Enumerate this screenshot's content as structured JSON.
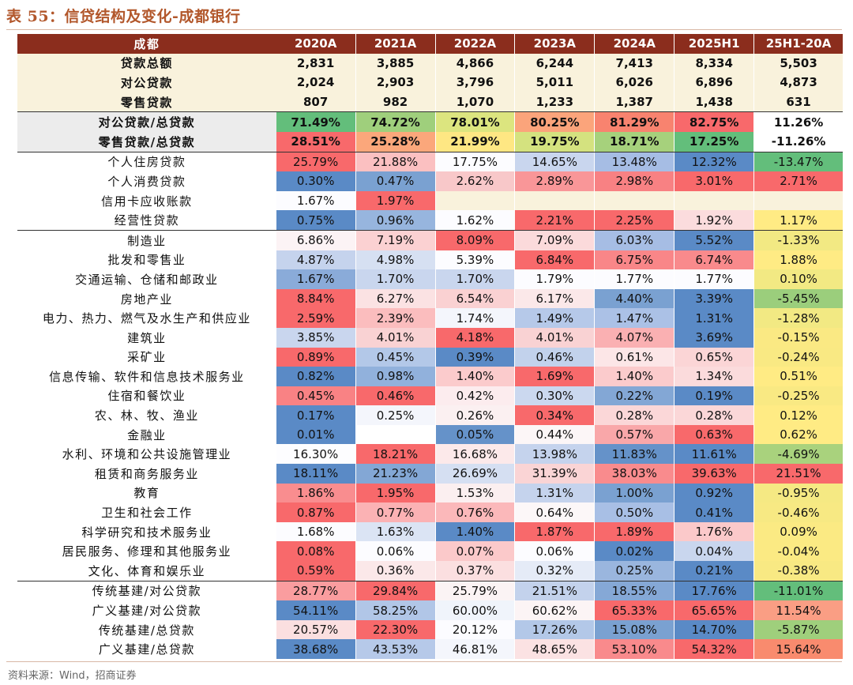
{
  "title": "表 55：信贷结构及变化-成都银行",
  "source": "资料来源：Wind，招商证券",
  "header": [
    "成都",
    "2020A",
    "2021A",
    "2022A",
    "2023A",
    "2024A",
    "2025H1",
    "25H1-20A"
  ],
  "rows": [
    {
      "label": "贷款总额",
      "vals": [
        "2,831",
        "3,885",
        "4,866",
        "6,244",
        "7,413",
        "8,334",
        "5,503"
      ],
      "style": "summary",
      "colors": []
    },
    {
      "label": "对公贷款",
      "vals": [
        "2,024",
        "2,903",
        "3,796",
        "5,011",
        "6,026",
        "6,896",
        "4,873"
      ],
      "style": "summary",
      "colors": []
    },
    {
      "label": "零售贷款",
      "vals": [
        "807",
        "982",
        "1,070",
        "1,233",
        "1,387",
        "1,438",
        "631"
      ],
      "style": "summary",
      "colors": []
    },
    {
      "label": "对公贷款/总贷款",
      "vals": [
        "71.49%",
        "74.72%",
        "78.01%",
        "80.25%",
        "81.29%",
        "82.75%",
        "11.26%"
      ],
      "style": "ratio sep",
      "colors": [
        "#63be7b",
        "#9fcf7c",
        "#dce57f",
        "#fba47b",
        "#f8836f",
        "#f8696b",
        "#ffffff"
      ]
    },
    {
      "label": "零售贷款/总贷款",
      "vals": [
        "28.51%",
        "25.28%",
        "21.99%",
        "19.75%",
        "18.71%",
        "17.25%",
        "-11.26%"
      ],
      "style": "ratio",
      "colors": [
        "#f8696b",
        "#fba77b",
        "#fee783",
        "#d4e27f",
        "#a6d17c",
        "#63be7b",
        "#ffffff"
      ]
    },
    {
      "label": "个人住房贷款",
      "vals": [
        "25.79%",
        "21.88%",
        "17.75%",
        "14.65%",
        "13.48%",
        "12.32%",
        "-13.47%"
      ],
      "style": "sep",
      "colors": [
        "#f8696b",
        "#fbc0c1",
        "#fcfcff",
        "#c9d6ee",
        "#a6bde4",
        "#5a8ac6",
        "#63be7b"
      ]
    },
    {
      "label": "个人消费贷款",
      "vals": [
        "0.30%",
        "0.47%",
        "2.62%",
        "2.89%",
        "2.98%",
        "3.01%",
        "2.71%"
      ],
      "style": "",
      "colors": [
        "#5a8ac6",
        "#7aa1d1",
        "#f8c8c9",
        "#f99698",
        "#f88183",
        "#f8696b",
        "#f8696b"
      ]
    },
    {
      "label": "信用卡应收账款",
      "vals": [
        "1.67%",
        "1.97%",
        "",
        "",
        "",
        "",
        ""
      ],
      "style": "",
      "colors": [
        "#fcfcff",
        "#f8696b",
        "#f9f2dc",
        "#f9f2dc",
        "#f9f2dc",
        "#f9f2dc",
        "#f9f2dc"
      ]
    },
    {
      "label": "经营性贷款",
      "vals": [
        "0.75%",
        "0.96%",
        "1.62%",
        "2.21%",
        "2.25%",
        "1.92%",
        "1.17%"
      ],
      "style": "",
      "colors": [
        "#5a8ac6",
        "#97b5de",
        "#fcfcff",
        "#f8696b",
        "#f8696b",
        "#fbdcdd",
        "#ffeb84"
      ]
    },
    {
      "label": "制造业",
      "vals": [
        "6.86%",
        "7.19%",
        "8.09%",
        "7.09%",
        "6.03%",
        "5.52%",
        "-1.33%"
      ],
      "style": "sep",
      "colors": [
        "#fcf3f5",
        "#fbd1d2",
        "#f8696b",
        "#fbdadb",
        "#a6bde4",
        "#5a8ac6",
        "#f2e983"
      ]
    },
    {
      "label": "批发和零售业",
      "vals": [
        "4.87%",
        "4.98%",
        "5.39%",
        "6.84%",
        "6.75%",
        "6.74%",
        "1.88%"
      ],
      "style": "",
      "colors": [
        "#c5d3ed",
        "#d6e0f2",
        "#fcfcff",
        "#f8696b",
        "#f98688",
        "#f98a8c",
        "#ffeb84"
      ]
    },
    {
      "label": "交通运输、仓储和邮政业",
      "vals": [
        "1.67%",
        "1.70%",
        "1.70%",
        "1.79%",
        "1.77%",
        "1.77%",
        "0.10%"
      ],
      "style": "",
      "colors": [
        "#8aabd9",
        "#c9d6ee",
        "#c9d6ee",
        "#fcfcff",
        "#fcfcff",
        "#fcfcff",
        "#f2e983"
      ]
    },
    {
      "label": "房地产业",
      "vals": [
        "8.84%",
        "6.27%",
        "6.54%",
        "6.17%",
        "4.40%",
        "3.39%",
        "-5.45%"
      ],
      "style": "",
      "colors": [
        "#f8696b",
        "#fbe2e3",
        "#fad1d2",
        "#fbe8e9",
        "#7aa1d1",
        "#5a8ac6",
        "#9bce7c"
      ]
    },
    {
      "label": "电力、热力、燃气及水生产和供应业",
      "vals": [
        "2.59%",
        "2.39%",
        "1.74%",
        "1.49%",
        "1.47%",
        "1.31%",
        "-1.28%"
      ],
      "style": "",
      "colors": [
        "#f8696b",
        "#fbbdbe",
        "#f4f6fc",
        "#b6c9e9",
        "#abc1e6",
        "#5a8ac6",
        "#f2e983"
      ]
    },
    {
      "label": "建筑业",
      "vals": [
        "3.85%",
        "4.01%",
        "4.18%",
        "4.01%",
        "4.07%",
        "3.69%",
        "-0.15%"
      ],
      "style": "",
      "colors": [
        "#c9d6ee",
        "#f9d2d3",
        "#f8696b",
        "#f9d2d3",
        "#fab0b2",
        "#5a8ac6",
        "#fae983"
      ]
    },
    {
      "label": "采矿业",
      "vals": [
        "0.89%",
        "0.45%",
        "0.39%",
        "0.46%",
        "0.61%",
        "0.65%",
        "-0.24%"
      ],
      "style": "",
      "colors": [
        "#f8696b",
        "#b3c8e8",
        "#5a8ac6",
        "#c2d2ec",
        "#fce6e7",
        "#fbd5d6",
        "#f9e983"
      ]
    },
    {
      "label": "信息传输、软件和信息技术服务业",
      "vals": [
        "0.82%",
        "0.98%",
        "1.40%",
        "1.69%",
        "1.40%",
        "1.34%",
        "0.51%"
      ],
      "style": "",
      "colors": [
        "#5a8ac6",
        "#91b1dc",
        "#fbcbcc",
        "#f8696b",
        "#fbcbcc",
        "#fbdbdc",
        "#ffeb84"
      ]
    },
    {
      "label": "住宿和餐饮业",
      "vals": [
        "0.45%",
        "0.46%",
        "0.42%",
        "0.30%",
        "0.22%",
        "0.19%",
        "-0.25%"
      ],
      "style": "",
      "colors": [
        "#f98284",
        "#f8696b",
        "#fcecee",
        "#cbd8ef",
        "#83a7d5",
        "#5a8ac6",
        "#f9e983"
      ]
    },
    {
      "label": "农、林、牧、渔业",
      "vals": [
        "0.17%",
        "0.25%",
        "0.26%",
        "0.34%",
        "0.28%",
        "0.28%",
        "0.12%"
      ],
      "style": "",
      "colors": [
        "#5a8ac6",
        "#f4f6fc",
        "#fbf0f1",
        "#f8696b",
        "#fbd7d8",
        "#fbd7d8",
        "#ffeb84"
      ]
    },
    {
      "label": "金融业",
      "vals": [
        "0.01%",
        "",
        "0.05%",
        "0.44%",
        "0.57%",
        "0.63%",
        "0.62%"
      ],
      "style": "",
      "colors": [
        "#5a8ac6",
        "#ffffff",
        "#6592c9",
        "#fcf6f7",
        "#f9a7a9",
        "#f8696b",
        "#ffeb84"
      ]
    },
    {
      "label": "水利、环境和公共设施管理业",
      "vals": [
        "16.30%",
        "18.21%",
        "16.68%",
        "13.98%",
        "11.83%",
        "11.61%",
        "-4.69%"
      ],
      "style": "",
      "colors": [
        "#fdfdff",
        "#f8696b",
        "#fce9ea",
        "#c5d3ed",
        "#6592c9",
        "#5a8ac6",
        "#a9d27d"
      ]
    },
    {
      "label": "租赁和商务服务业",
      "vals": [
        "18.11%",
        "21.23%",
        "26.69%",
        "31.39%",
        "38.03%",
        "39.63%",
        "21.51%"
      ],
      "style": "",
      "colors": [
        "#5a8ac6",
        "#83a7d5",
        "#d5dff2",
        "#fad4d5",
        "#f98b8d",
        "#f8696b",
        "#f8696b"
      ]
    },
    {
      "label": "教育",
      "vals": [
        "1.86%",
        "1.95%",
        "1.53%",
        "1.31%",
        "1.00%",
        "0.92%",
        "-0.95%"
      ],
      "style": "",
      "colors": [
        "#f98d8f",
        "#f8696b",
        "#fbeff0",
        "#c5d3ed",
        "#7aa1d1",
        "#5a8ac6",
        "#f5e983"
      ]
    },
    {
      "label": "卫生和社会工作",
      "vals": [
        "0.87%",
        "0.77%",
        "0.76%",
        "0.64%",
        "0.50%",
        "0.41%",
        "-0.46%"
      ],
      "style": "",
      "colors": [
        "#f8696b",
        "#fbb2b4",
        "#fbb8ba",
        "#fcf7f8",
        "#a8bfe5",
        "#5a8ac6",
        "#f7e983"
      ]
    },
    {
      "label": "科学研究和技术服务业",
      "vals": [
        "1.68%",
        "1.63%",
        "1.40%",
        "1.87%",
        "1.89%",
        "1.76%",
        "0.09%"
      ],
      "style": "",
      "colors": [
        "#fcfcff",
        "#dbe4f4",
        "#5a8ac6",
        "#f8696b",
        "#f8696b",
        "#fbc9ca",
        "#fbea83"
      ]
    },
    {
      "label": "居民服务、修理和其他服务业",
      "vals": [
        "0.08%",
        "0.06%",
        "0.07%",
        "0.06%",
        "0.02%",
        "0.04%",
        "-0.04%"
      ],
      "style": "",
      "colors": [
        "#f8696b",
        "#fcfcff",
        "#fbc9ca",
        "#fcfcff",
        "#5a8ac6",
        "#c9d6ee",
        "#fbea83"
      ]
    },
    {
      "label": "文化、体育和娱乐业",
      "vals": [
        "0.59%",
        "0.36%",
        "0.37%",
        "0.32%",
        "0.25%",
        "0.21%",
        "-0.38%"
      ],
      "style": "",
      "colors": [
        "#f8696b",
        "#fbe8e9",
        "#fbdfe0",
        "#e5ebf7",
        "#9ab6de",
        "#5a8ac6",
        "#f8e983"
      ]
    },
    {
      "label": "传统基建/对公贷款",
      "vals": [
        "28.77%",
        "29.84%",
        "25.79%",
        "21.51%",
        "18.55%",
        "17.76%",
        "-11.01%"
      ],
      "style": "sep",
      "colors": [
        "#fa9d9f",
        "#f8696b",
        "#fbf3f4",
        "#c3d2ec",
        "#85a8d6",
        "#5a8ac6",
        "#63be7b"
      ]
    },
    {
      "label": "广义基建/对公贷款",
      "vals": [
        "54.11%",
        "58.25%",
        "60.00%",
        "60.62%",
        "65.33%",
        "65.65%",
        "11.54%"
      ],
      "style": "",
      "colors": [
        "#5a8ac6",
        "#b1c6e7",
        "#f0f4fb",
        "#fcf4f5",
        "#f8696b",
        "#f8696b",
        "#fa9e84"
      ]
    },
    {
      "label": "传统基建/总贷款",
      "vals": [
        "20.57%",
        "22.30%",
        "20.12%",
        "17.26%",
        "15.08%",
        "14.70%",
        "-5.87%"
      ],
      "style": "",
      "colors": [
        "#fbdfe0",
        "#f8696b",
        "#fcfcff",
        "#b3c8e8",
        "#7aa1d1",
        "#5a8ac6",
        "#9fcf7c"
      ]
    },
    {
      "label": "广义基建/总贷款",
      "vals": [
        "38.68%",
        "43.53%",
        "46.81%",
        "48.65%",
        "53.10%",
        "54.32%",
        "15.64%"
      ],
      "style": "",
      "colors": [
        "#5a8ac6",
        "#b6c9e9",
        "#f4f6fc",
        "#fbe2e3",
        "#f98a8c",
        "#f8696b",
        "#f98b6e"
      ]
    }
  ]
}
